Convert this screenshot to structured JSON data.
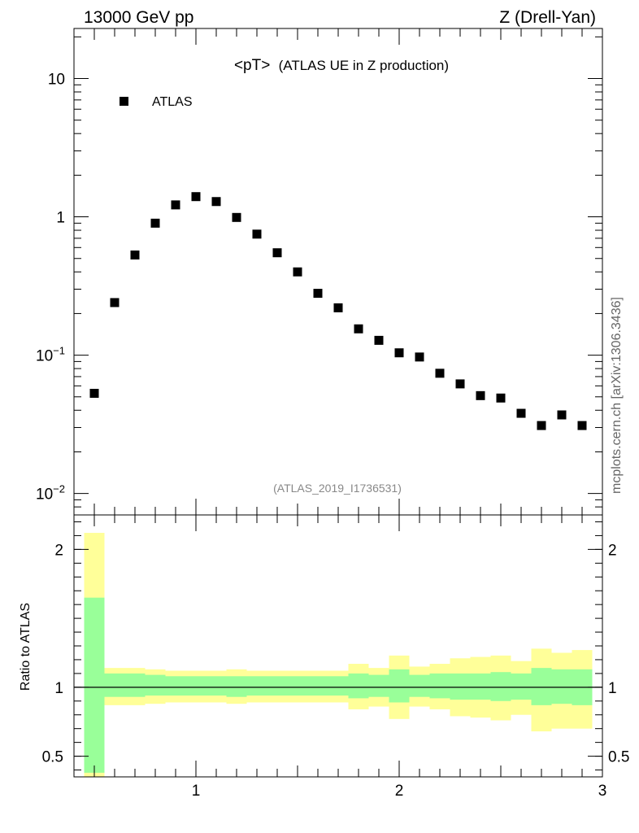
{
  "header": {
    "left": "13000 GeV pp",
    "right": "Z (Drell-Yan)"
  },
  "side_label": "mcplots.cern.ch [arXiv:1306.3436]",
  "chart_data": [
    {
      "type": "scatter",
      "title": "<pT>",
      "subtitle": "(ATLAS UE in Z production)",
      "watermark": "(ATLAS_2019_I1736531)",
      "yscale": "log",
      "xlim": [
        0.4,
        3.0
      ],
      "ylim": [
        0.007,
        23
      ],
      "grid": false,
      "legend_position": "top-left",
      "marker_color": "#000000",
      "y_ticks": [
        {
          "value": 10,
          "label": "10"
        },
        {
          "value": 1,
          "label": "1"
        },
        {
          "value": 0.1,
          "label": "10",
          "sup": "−1"
        },
        {
          "value": 0.01,
          "label": "10",
          "sup": "−2"
        }
      ],
      "series": [
        {
          "name": "ATLAS",
          "x": [
            0.5,
            0.6,
            0.7,
            0.8,
            0.9,
            1.0,
            1.1,
            1.2,
            1.3,
            1.4,
            1.5,
            1.6,
            1.7,
            1.8,
            1.9,
            2.0,
            2.1,
            2.2,
            2.3,
            2.4,
            2.5,
            2.6,
            2.7,
            2.8,
            2.9
          ],
          "y": [
            0.053,
            0.24,
            0.53,
            0.9,
            1.22,
            1.4,
            1.29,
            0.99,
            0.75,
            0.55,
            0.4,
            0.28,
            0.22,
            0.155,
            0.128,
            0.104,
            0.097,
            0.074,
            0.062,
            0.051,
            0.049,
            0.038,
            0.031,
            0.037,
            0.031
          ]
        }
      ]
    },
    {
      "type": "area",
      "ylabel": "Ratio to ATLAS",
      "xlim": [
        0.4,
        3.0
      ],
      "ylim": [
        0.35,
        2.25
      ],
      "x_ticks": [
        1,
        2,
        3
      ],
      "y_ticks": [
        0.5,
        1,
        2
      ],
      "reference_line": 1,
      "band_colors": {
        "inner": "#99ff99",
        "outer": "#ffff99"
      },
      "bins": [
        {
          "lo": 0.45,
          "hi": 0.55,
          "inner": [
            0.38,
            1.65
          ],
          "outer": [
            0.28,
            2.12
          ]
        },
        {
          "lo": 0.55,
          "hi": 0.65,
          "inner": [
            0.93,
            1.1
          ],
          "outer": [
            0.87,
            1.14
          ]
        },
        {
          "lo": 0.65,
          "hi": 0.75,
          "inner": [
            0.93,
            1.1
          ],
          "outer": [
            0.87,
            1.14
          ]
        },
        {
          "lo": 0.75,
          "hi": 0.85,
          "inner": [
            0.94,
            1.09
          ],
          "outer": [
            0.88,
            1.13
          ]
        },
        {
          "lo": 0.85,
          "hi": 0.95,
          "inner": [
            0.94,
            1.08
          ],
          "outer": [
            0.89,
            1.12
          ]
        },
        {
          "lo": 0.95,
          "hi": 1.05,
          "inner": [
            0.94,
            1.08
          ],
          "outer": [
            0.89,
            1.12
          ]
        },
        {
          "lo": 1.05,
          "hi": 1.15,
          "inner": [
            0.94,
            1.08
          ],
          "outer": [
            0.89,
            1.12
          ]
        },
        {
          "lo": 1.15,
          "hi": 1.25,
          "inner": [
            0.93,
            1.08
          ],
          "outer": [
            0.88,
            1.13
          ]
        },
        {
          "lo": 1.25,
          "hi": 1.35,
          "inner": [
            0.94,
            1.08
          ],
          "outer": [
            0.89,
            1.12
          ]
        },
        {
          "lo": 1.35,
          "hi": 1.45,
          "inner": [
            0.94,
            1.08
          ],
          "outer": [
            0.89,
            1.12
          ]
        },
        {
          "lo": 1.45,
          "hi": 1.55,
          "inner": [
            0.94,
            1.08
          ],
          "outer": [
            0.89,
            1.12
          ]
        },
        {
          "lo": 1.55,
          "hi": 1.65,
          "inner": [
            0.94,
            1.08
          ],
          "outer": [
            0.89,
            1.12
          ]
        },
        {
          "lo": 1.65,
          "hi": 1.75,
          "inner": [
            0.94,
            1.08
          ],
          "outer": [
            0.89,
            1.12
          ]
        },
        {
          "lo": 1.75,
          "hi": 1.85,
          "inner": [
            0.92,
            1.1
          ],
          "outer": [
            0.84,
            1.17
          ]
        },
        {
          "lo": 1.85,
          "hi": 1.95,
          "inner": [
            0.93,
            1.09
          ],
          "outer": [
            0.86,
            1.14
          ]
        },
        {
          "lo": 1.95,
          "hi": 2.05,
          "inner": [
            0.89,
            1.13
          ],
          "outer": [
            0.77,
            1.23
          ]
        },
        {
          "lo": 2.05,
          "hi": 2.15,
          "inner": [
            0.93,
            1.09
          ],
          "outer": [
            0.86,
            1.15
          ]
        },
        {
          "lo": 2.15,
          "hi": 2.25,
          "inner": [
            0.92,
            1.1
          ],
          "outer": [
            0.84,
            1.17
          ]
        },
        {
          "lo": 2.25,
          "hi": 2.35,
          "inner": [
            0.91,
            1.1
          ],
          "outer": [
            0.79,
            1.21
          ]
        },
        {
          "lo": 2.35,
          "hi": 2.45,
          "inner": [
            0.91,
            1.1
          ],
          "outer": [
            0.78,
            1.22
          ]
        },
        {
          "lo": 2.45,
          "hi": 2.55,
          "inner": [
            0.9,
            1.11
          ],
          "outer": [
            0.76,
            1.23
          ]
        },
        {
          "lo": 2.55,
          "hi": 2.65,
          "inner": [
            0.91,
            1.1
          ],
          "outer": [
            0.8,
            1.19
          ]
        },
        {
          "lo": 2.65,
          "hi": 2.75,
          "inner": [
            0.87,
            1.14
          ],
          "outer": [
            0.68,
            1.28
          ]
        },
        {
          "lo": 2.75,
          "hi": 2.85,
          "inner": [
            0.88,
            1.13
          ],
          "outer": [
            0.7,
            1.25
          ]
        },
        {
          "lo": 2.85,
          "hi": 2.95,
          "inner": [
            0.87,
            1.13
          ],
          "outer": [
            0.7,
            1.27
          ]
        }
      ]
    }
  ]
}
